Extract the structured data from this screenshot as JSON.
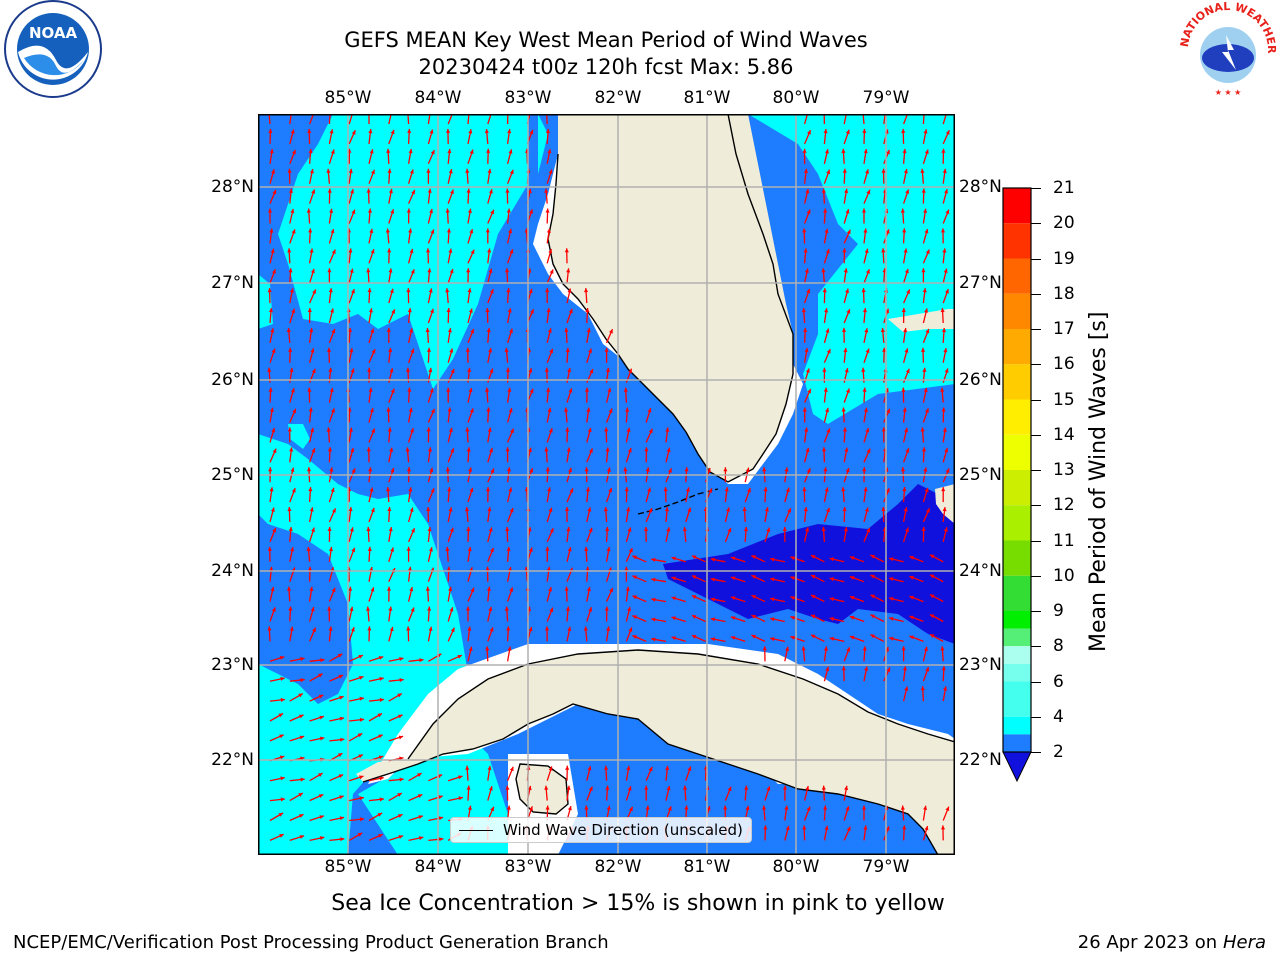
{
  "header": {
    "title_line1": "GEFS MEAN Key West Mean Period of Wind Waves",
    "title_line2": "20230424 t00z 120h fcst   Max: 5.86"
  },
  "logos": {
    "left": "NOAA",
    "right": "NATIONAL WEATHER SERVICE"
  },
  "map": {
    "lon_ticks": [
      "85°W",
      "84°W",
      "83°W",
      "82°W",
      "81°W",
      "80°W",
      "79°W"
    ],
    "lat_ticks": [
      "28°N",
      "27°N",
      "26°N",
      "25°N",
      "24°N",
      "23°N",
      "22°N"
    ],
    "legend_label": "Wind Wave Direction (unscaled)",
    "colors": {
      "land": "#efedd9",
      "missing": "#ffffff",
      "arrow": "#ff0000"
    }
  },
  "colorbar": {
    "label": "Mean Period of Wind Waves [s]",
    "ticks": [
      "21",
      "20",
      "19",
      "18",
      "17",
      "16",
      "15",
      "14",
      "13",
      "12",
      "11",
      "10",
      "9",
      "8",
      "6",
      "4",
      "2"
    ],
    "bands": [
      "#ff0000",
      "#ff3300",
      "#ff6600",
      "#ff8800",
      "#ffaa00",
      "#ffcc00",
      "#ffee00",
      "#eeff00",
      "#ccee00",
      "#aaee00",
      "#77dd00",
      "#33dd33",
      "#00ee00",
      "#55ee77",
      "#aaffee",
      "#77ffee",
      "#44ffee",
      "#00ffff",
      "#1e7cff"
    ],
    "under_color": "#1111dd"
  },
  "footer": {
    "note": "Sea Ice Concentration > 15% is shown in pink to yellow",
    "left": "NCEP/EMC/Verification Post Processing Product Generation Branch",
    "right_date": "26 Apr 2023 on ",
    "right_host": "Hera"
  }
}
